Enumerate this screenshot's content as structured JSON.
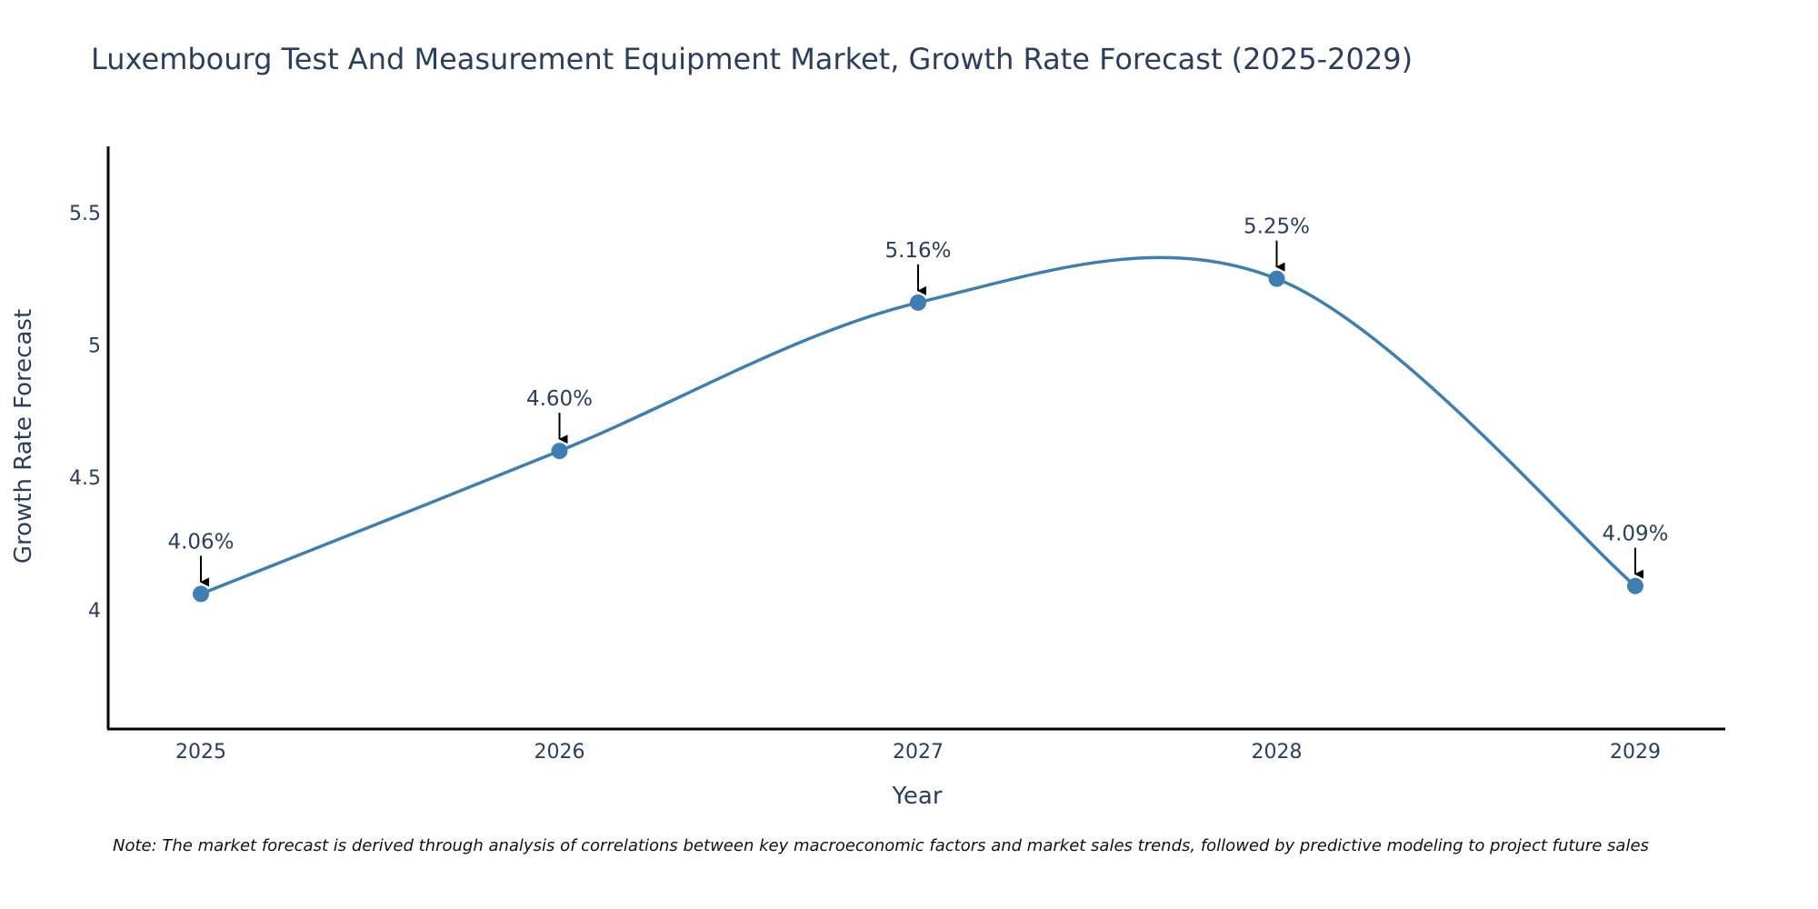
{
  "chart_data": {
    "type": "line",
    "title": "Luxembourg Test And Measurement Equipment Market, Growth Rate Forecast (2025-2029)",
    "xlabel": "Year",
    "ylabel": "Growth Rate Forecast",
    "categories": [
      "2025",
      "2026",
      "2027",
      "2028",
      "2029"
    ],
    "series": [
      {
        "name": "Growth Rate Forecast",
        "values": [
          4.06,
          4.6,
          5.16,
          5.25,
          4.09
        ],
        "color": "#3d7fb3"
      }
    ],
    "annotations": [
      "4.06%",
      "4.60%",
      "5.16%",
      "5.25%",
      "4.09%"
    ],
    "yticks": [
      "4",
      "4.5",
      "5",
      "5.5"
    ],
    "ytick_values": [
      4,
      4.5,
      5,
      5.5
    ],
    "ylim": [
      3.55,
      5.75
    ],
    "grid": false,
    "line_shape": "spline"
  },
  "note": "Note: The market forecast is derived through analysis of correlations between key macroeconomic factors and market sales trends, followed by predictive modeling to project future sales"
}
